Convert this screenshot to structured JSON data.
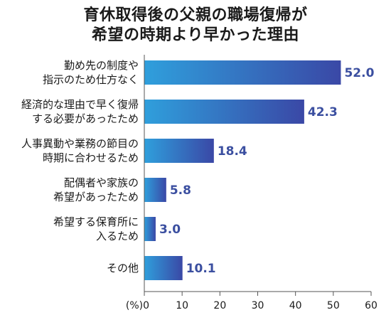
{
  "colors": {
    "bar_start": "#2f9fdc",
    "bar_end": "#3a48a6",
    "value_text": "#3b4fa0",
    "axis": "#555555"
  },
  "chart_data": {
    "type": "bar",
    "orientation": "horizontal",
    "title": "育休取得後の父親の職場復帰が希望の時期より早かった理由",
    "title_lines": [
      "育休取得後の父親の職場復帰が",
      "希望の時期より早かった理由"
    ],
    "categories": [
      [
        "勤め先の制度や",
        "指示のため仕方なく"
      ],
      [
        "経済的な理由で早く復帰",
        "する必要があったため"
      ],
      [
        "人事異動や業務の節目の",
        "時期に合わせるため"
      ],
      [
        "配偶者や家族の",
        "希望があったため"
      ],
      [
        "希望する保育所に",
        "入るため"
      ],
      [
        "その他"
      ]
    ],
    "values": [
      52.0,
      42.3,
      18.4,
      5.8,
      3.0,
      10.1
    ],
    "value_labels": [
      "52.0",
      "42.3",
      "18.4",
      "5.8",
      "3.0",
      "10.1"
    ],
    "xlim": [
      0,
      60
    ],
    "xticks": [
      0,
      10,
      20,
      30,
      40,
      50,
      60
    ],
    "xtick_labels": [
      "(%)0",
      "10",
      "20",
      "30",
      "40",
      "50",
      "60"
    ],
    "xlabel": "",
    "ylabel": "",
    "grid": false,
    "legend": "none"
  }
}
